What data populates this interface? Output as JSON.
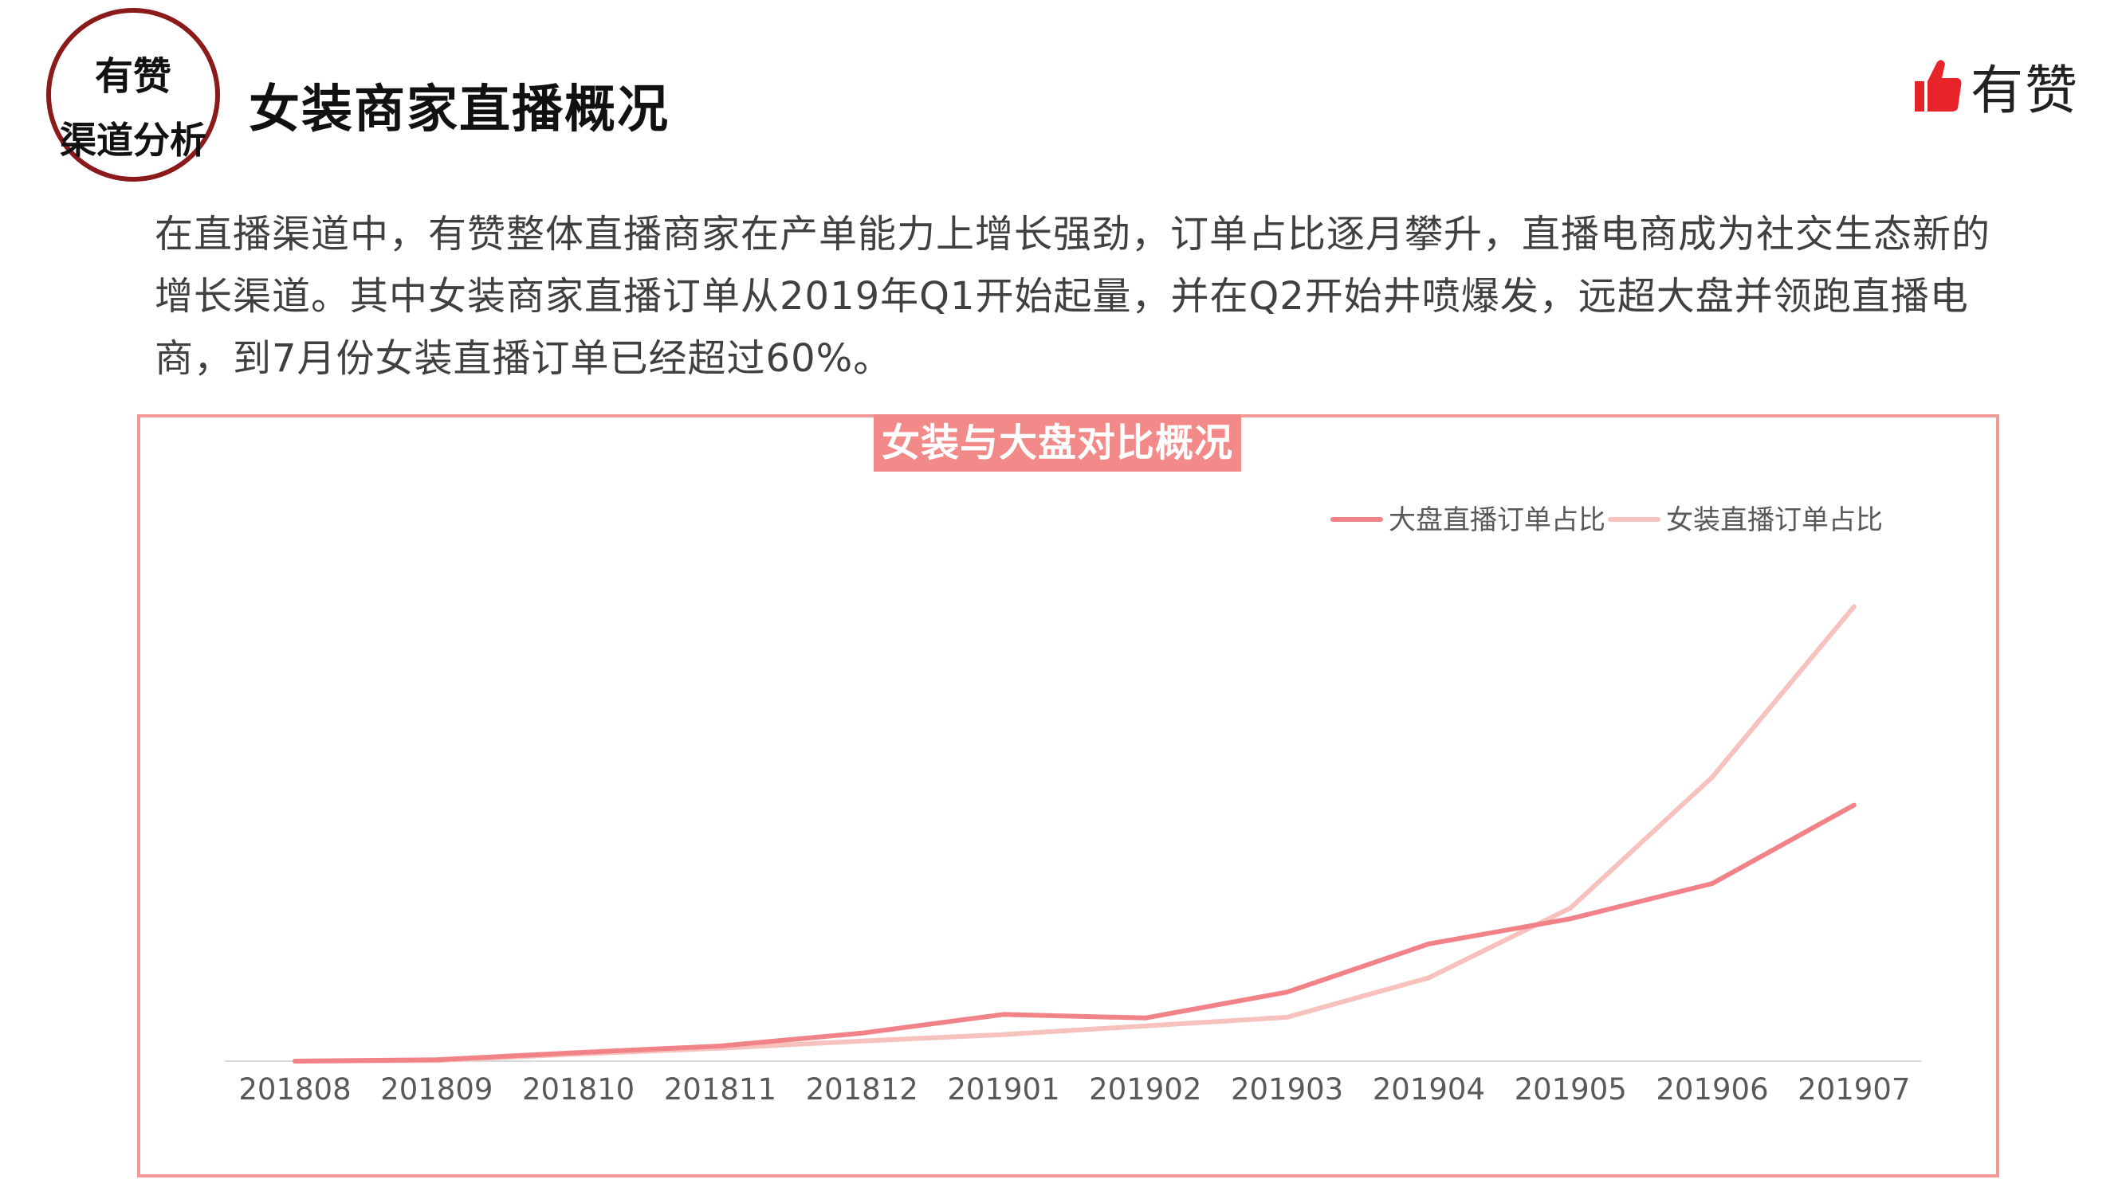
{
  "badge": {
    "line1": "有赞",
    "line2": "渠道分析"
  },
  "page_title": "女装商家直播概况",
  "brand": {
    "name": "有赞",
    "icon": "thumbs-up-icon",
    "icon_color": "#e8242b"
  },
  "intro_text": "在直播渠道中，有赞整体直播商家在产单能力上增长强劲，订单占比逐月攀升，直播电商成为社交生态新的增长渠道。其中女装商家直播订单从2019年Q1开始起量，并在Q2开始井喷爆发，远超大盘并领跑直播电商，到7月份女装直播订单已经超过60%。",
  "chart_data": {
    "type": "line",
    "title": "女装与大盘对比概况",
    "categories": [
      "201808",
      "201809",
      "201810",
      "201811",
      "201812",
      "201901",
      "201902",
      "201903",
      "201904",
      "201905",
      "201906",
      "201907"
    ],
    "series": [
      {
        "name": "大盘直播订单占比",
        "color": "#f08288",
        "values": [
          0.0,
          0.2,
          1.2,
          2.1,
          3.9,
          6.5,
          6.0,
          9.6,
          16.3,
          19.8,
          24.7,
          35.6
        ]
      },
      {
        "name": "女装直播订单占比",
        "color": "#f7c1bd",
        "values": [
          0.0,
          0.1,
          1.0,
          1.8,
          2.8,
          3.7,
          4.9,
          6.1,
          11.6,
          21.3,
          39.5,
          63.2
        ]
      }
    ],
    "ylim": [
      0,
      70
    ],
    "grid": false,
    "legend": "top-right",
    "xlabel": "",
    "ylabel": ""
  }
}
